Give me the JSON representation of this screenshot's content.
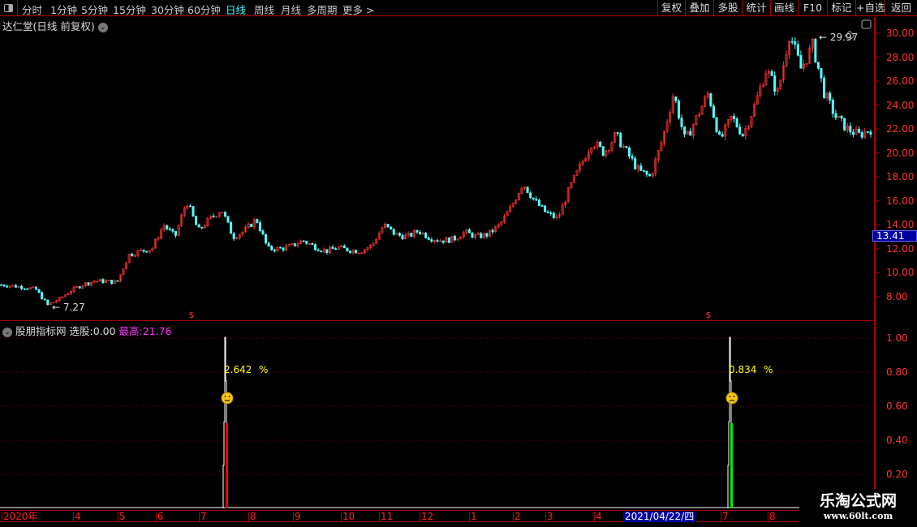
{
  "toolbar": {
    "periods": [
      "分时",
      "1分钟",
      "5分钟",
      "15分钟",
      "30分钟",
      "60分钟",
      "日线",
      "周线",
      "月线",
      "多周期",
      "更多 >"
    ],
    "active_period": "日线",
    "right_buttons": [
      "复权",
      "叠加",
      "多股",
      "统计",
      "画线",
      "F10",
      "标记",
      "+自选",
      "返回"
    ]
  },
  "main_chart": {
    "title": "达仁堂(日线 前复权)",
    "high_label": "29.97",
    "low_label": "7.27",
    "current_price": "13.41",
    "price_ticks": [
      "30.00",
      "28.00",
      "26.00",
      "24.00",
      "22.00",
      "20.00",
      "18.00",
      "16.00",
      "14.00",
      "12.00",
      "10.00",
      "8.00"
    ],
    "marker": "$",
    "up_color": "#ff3232",
    "down_color": "#54ffff",
    "closes": [
      9.0,
      8.9,
      8.8,
      8.6,
      7.3,
      7.8,
      8.5,
      9.0,
      9.3,
      9.3,
      9.2,
      11.5,
      11.8,
      12.0,
      14.0,
      13.0,
      16.0,
      13.5,
      14.5,
      15.3,
      13.0,
      13.5,
      14.5,
      12.0,
      12.0,
      12.2,
      12.7,
      12.2,
      11.8,
      12.1,
      11.9,
      11.8,
      12.3,
      14.0,
      13.2,
      13.0,
      13.5,
      12.9,
      12.7,
      12.8,
      13.4,
      13.0,
      13.2,
      14.0,
      15.5,
      17.5,
      16.0,
      15.0,
      14.5,
      17.0,
      19.0,
      21.0,
      20.0,
      21.5,
      20.0,
      18.5,
      18.0,
      21.0,
      25.0,
      21.0,
      23.0,
      25.0,
      21.0,
      23.0,
      21.5,
      24.0,
      27.0,
      25.0,
      30.0,
      27.0,
      29.0,
      25.0,
      23.0,
      22.0,
      21.5,
      22.0
    ]
  },
  "indicator": {
    "name": "股朋指标网",
    "pick_label": "选股:",
    "pick_value": "0.00",
    "high_label": "最高:",
    "high_value": "21.76",
    "ticks": [
      "1.00",
      "0.80",
      "0.60",
      "0.40",
      "0.20"
    ],
    "signals": [
      {
        "value": "2.642",
        "unit": "%",
        "face": "smile",
        "bar_color": "#ff0000",
        "bar_value": 0.5,
        "line_value": 1.0
      },
      {
        "value": "0.834",
        "unit": "%",
        "face": "frown",
        "bar_color": "#00ee00",
        "bar_value": 0.5,
        "line_value": 1.0
      }
    ]
  },
  "time_axis": [
    "2020年",
    "4",
    "5",
    "6",
    "7",
    "8",
    "9",
    "10",
    "11",
    "12",
    "1",
    "2",
    "3",
    "4",
    "2021/04/22/四",
    "7",
    "8"
  ],
  "watermark": {
    "title": "乐淘公式网",
    "url": "www.60lt.com"
  }
}
